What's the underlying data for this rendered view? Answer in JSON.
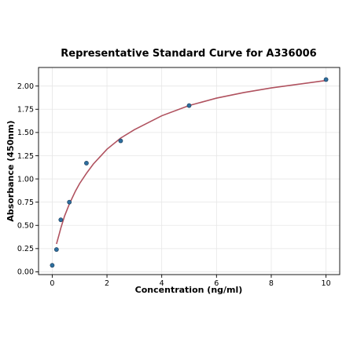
{
  "chart_data": {
    "type": "scatter",
    "title": "Representative Standard Curve for A336006",
    "xlabel": "Concentration (ng/ml)",
    "ylabel": "Absorbance (450nm)",
    "xlim": [
      -0.5,
      10.5
    ],
    "ylim": [
      -0.03,
      2.2
    ],
    "xticks": [
      0,
      2,
      4,
      6,
      8,
      10
    ],
    "yticks": [
      0.0,
      0.25,
      0.5,
      0.75,
      1.0,
      1.25,
      1.5,
      1.75,
      2.0
    ],
    "xtick_labels": [
      "0",
      "2",
      "4",
      "6",
      "8",
      "10"
    ],
    "ytick_labels": [
      "0.00",
      "0.25",
      "0.50",
      "0.75",
      "1.00",
      "1.25",
      "1.50",
      "1.75",
      "2.00"
    ],
    "grid": true,
    "series": [
      {
        "type": "scatter",
        "color": "#2c6e9e",
        "x": [
          0,
          0.156,
          0.313,
          0.625,
          1.25,
          2.5,
          5,
          10
        ],
        "y": [
          0.07,
          0.24,
          0.56,
          0.75,
          1.17,
          1.41,
          1.79,
          2.07
        ]
      },
      {
        "type": "line",
        "color": "#b0525f",
        "x": [
          0.156,
          0.25,
          0.313,
          0.45,
          0.625,
          0.85,
          1.0,
          1.25,
          1.5,
          2.0,
          2.5,
          3.0,
          4.0,
          5.0,
          6.0,
          7.0,
          8.0,
          9.0,
          10.0
        ],
        "y": [
          0.3,
          0.4,
          0.47,
          0.6,
          0.73,
          0.87,
          0.95,
          1.06,
          1.16,
          1.32,
          1.44,
          1.53,
          1.68,
          1.79,
          1.87,
          1.93,
          1.98,
          2.02,
          2.06
        ]
      }
    ]
  }
}
